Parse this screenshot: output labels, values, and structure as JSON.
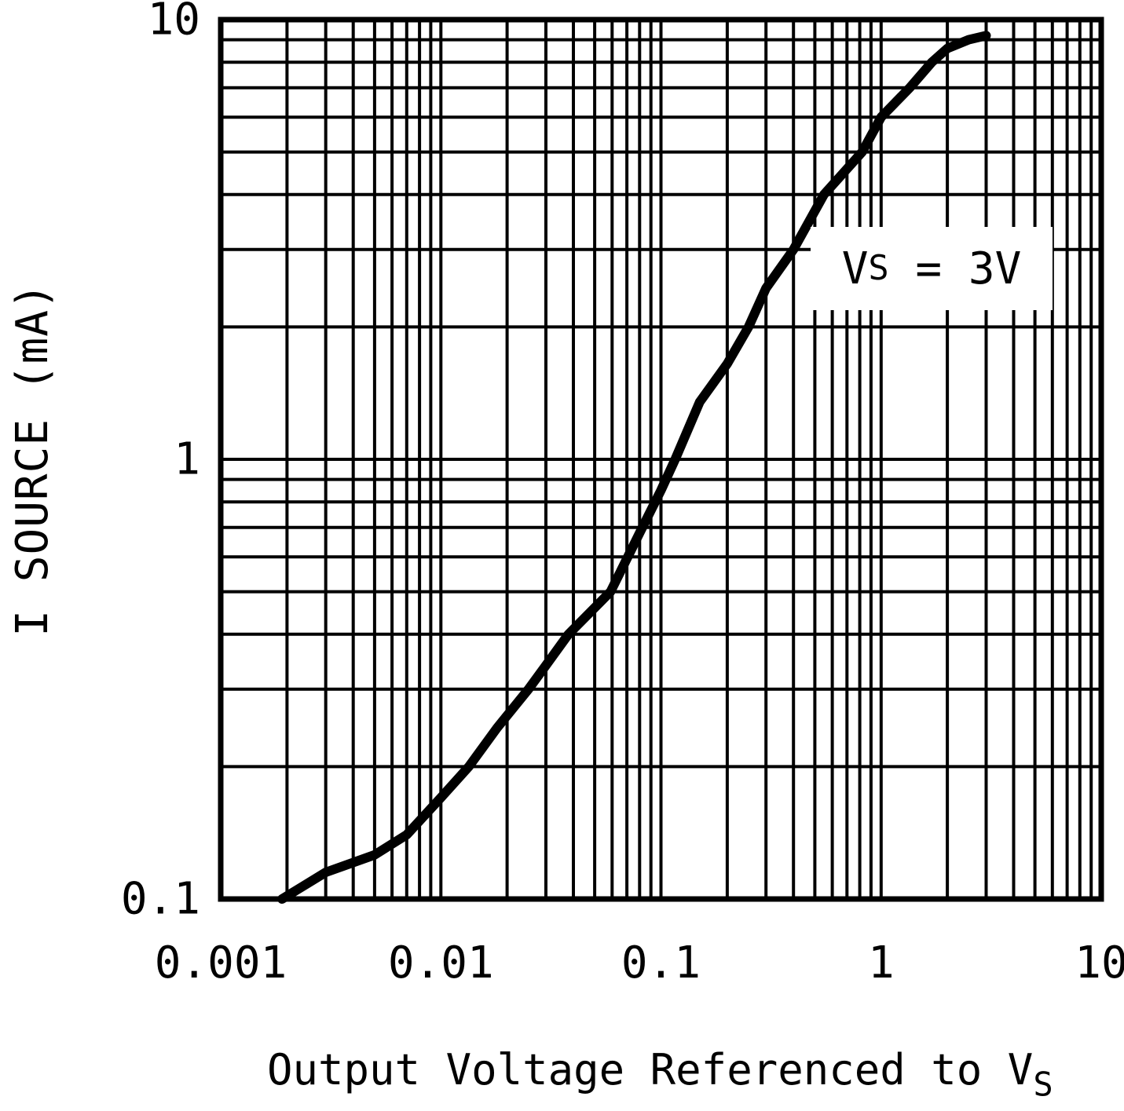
{
  "chart_data": {
    "type": "line",
    "title": "",
    "ylabel": "I SOURCE (mA)",
    "xlabel_main": "Output Voltage Referenced to V",
    "xlabel_sub": "S",
    "x_scale": "log",
    "y_scale": "log",
    "xlim": [
      0.001,
      10
    ],
    "ylim": [
      0.1,
      10
    ],
    "grid": "full log grid, major and minor lines, black on white",
    "legend_position": "none",
    "axis_color": "#000000",
    "curve_color": "#000000",
    "x_ticks": [
      {
        "value": 0.001,
        "label": "0.001"
      },
      {
        "value": 0.01,
        "label": "0.01"
      },
      {
        "value": 0.1,
        "label": "0.1"
      },
      {
        "value": 1,
        "label": "1"
      },
      {
        "value": 10,
        "label": "10"
      }
    ],
    "y_ticks": [
      {
        "value": 10,
        "label": "10"
      },
      {
        "value": 1,
        "label": "1"
      },
      {
        "value": 0.1,
        "label": "0.1"
      }
    ],
    "annotation": {
      "pre": "V",
      "sub": "S",
      "post": " = 3V",
      "text": "VS = 3V"
    },
    "series": [
      {
        "name": "I SOURCE vs Output Voltage (VS = 3V)",
        "points": [
          [
            0.0019,
            0.1
          ],
          [
            0.003,
            0.115
          ],
          [
            0.005,
            0.126
          ],
          [
            0.007,
            0.14
          ],
          [
            0.01,
            0.17
          ],
          [
            0.0134,
            0.2
          ],
          [
            0.018,
            0.245
          ],
          [
            0.025,
            0.3
          ],
          [
            0.03,
            0.34
          ],
          [
            0.038,
            0.4
          ],
          [
            0.059,
            0.5
          ],
          [
            0.08,
            0.68
          ],
          [
            0.1,
            0.85
          ],
          [
            0.116,
            1.0
          ],
          [
            0.15,
            1.35
          ],
          [
            0.2,
            1.65
          ],
          [
            0.25,
            2.0
          ],
          [
            0.3,
            2.45
          ],
          [
            0.4,
            3.0
          ],
          [
            0.55,
            4.0
          ],
          [
            0.82,
            5.0
          ],
          [
            1.0,
            6.0
          ],
          [
            1.35,
            7.0
          ],
          [
            1.7,
            8.0
          ],
          [
            2.0,
            8.6
          ],
          [
            2.5,
            9.0
          ],
          [
            3.0,
            9.2
          ]
        ]
      }
    ]
  }
}
